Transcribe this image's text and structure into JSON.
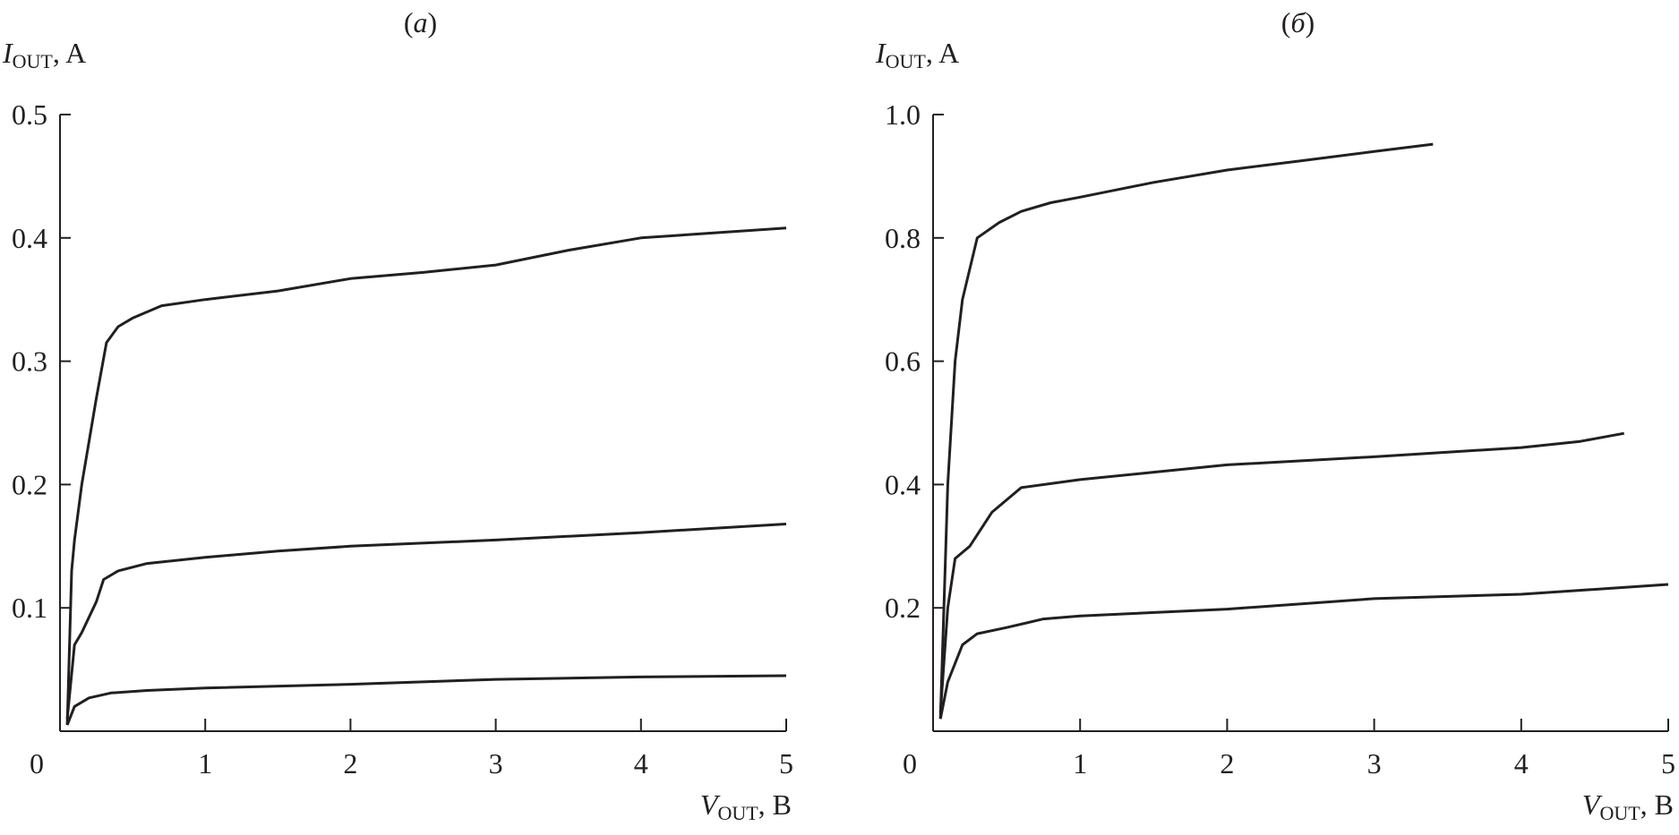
{
  "chart_data": [
    {
      "type": "line",
      "title": "(a)",
      "title_letter": "a",
      "xlabel": {
        "symbol": "V",
        "subscript": "OUT",
        "unit": ", B"
      },
      "ylabel": {
        "symbol": "I",
        "subscript": "OUT",
        "unit": ", A"
      },
      "xlim": [
        0,
        5
      ],
      "ylim": [
        0,
        0.5
      ],
      "xticks": [
        0,
        1,
        2,
        3,
        4,
        5
      ],
      "xtick_labels": [
        "0",
        "1",
        "2",
        "3",
        "4",
        "5"
      ],
      "yticks": [
        0.1,
        0.2,
        0.3,
        0.4,
        0.5
      ],
      "ytick_labels": [
        "0.1",
        "0.2",
        "0.3",
        "0.4",
        "0.5"
      ],
      "grid": false,
      "series": [
        {
          "x": [
            0.05,
            0.08,
            0.1,
            0.15,
            0.25,
            0.32,
            0.4,
            0.5,
            0.7,
            1,
            1.5,
            2,
            2.5,
            3,
            3.5,
            4,
            4.5,
            5
          ],
          "y": [
            0.005,
            0.13,
            0.155,
            0.2,
            0.27,
            0.315,
            0.328,
            0.335,
            0.345,
            0.35,
            0.357,
            0.367,
            0.372,
            0.378,
            0.39,
            0.4,
            0.404,
            0.408
          ]
        },
        {
          "x": [
            0.05,
            0.1,
            0.15,
            0.25,
            0.3,
            0.4,
            0.6,
            1,
            1.5,
            2,
            3,
            4,
            5
          ],
          "y": [
            0.01,
            0.07,
            0.08,
            0.105,
            0.123,
            0.13,
            0.136,
            0.141,
            0.146,
            0.15,
            0.155,
            0.161,
            0.168
          ]
        },
        {
          "x": [
            0.05,
            0.1,
            0.2,
            0.35,
            0.6,
            1,
            2,
            3,
            4,
            5
          ],
          "y": [
            0.005,
            0.02,
            0.027,
            0.031,
            0.033,
            0.035,
            0.038,
            0.042,
            0.044,
            0.045
          ]
        }
      ]
    },
    {
      "type": "line",
      "title": "(б)",
      "title_letter": "б",
      "xlabel": {
        "symbol": "V",
        "subscript": "OUT",
        "unit": ", B"
      },
      "ylabel": {
        "symbol": "I",
        "subscript": "OUT",
        "unit": ", A"
      },
      "xlim": [
        0,
        5
      ],
      "ylim": [
        0,
        1.0
      ],
      "xticks": [
        0,
        1,
        2,
        3,
        4,
        5
      ],
      "xtick_labels": [
        "0",
        "1",
        "2",
        "3",
        "4",
        "5"
      ],
      "yticks": [
        0.2,
        0.4,
        0.6,
        0.8,
        1.0
      ],
      "ytick_labels": [
        "0.2",
        "0.4",
        "0.6",
        "0.8",
        "1.0"
      ],
      "grid": false,
      "series": [
        {
          "x": [
            0.05,
            0.1,
            0.15,
            0.2,
            0.3,
            0.45,
            0.6,
            0.8,
            1,
            1.5,
            2,
            2.5,
            3,
            3.4
          ],
          "y": [
            0.02,
            0.4,
            0.6,
            0.7,
            0.8,
            0.825,
            0.843,
            0.857,
            0.866,
            0.89,
            0.91,
            0.925,
            0.94,
            0.952
          ]
        },
        {
          "x": [
            0.05,
            0.1,
            0.15,
            0.25,
            0.4,
            0.6,
            1,
            1.5,
            2,
            3,
            4,
            4.4,
            4.7
          ],
          "y": [
            0.03,
            0.2,
            0.28,
            0.3,
            0.355,
            0.395,
            0.408,
            0.42,
            0.432,
            0.445,
            0.46,
            0.47,
            0.483
          ]
        },
        {
          "x": [
            0.05,
            0.1,
            0.2,
            0.3,
            0.5,
            0.75,
            1,
            2,
            3,
            4,
            5
          ],
          "y": [
            0.02,
            0.08,
            0.14,
            0.158,
            0.168,
            0.182,
            0.187,
            0.198,
            0.215,
            0.222,
            0.238
          ]
        }
      ]
    }
  ]
}
